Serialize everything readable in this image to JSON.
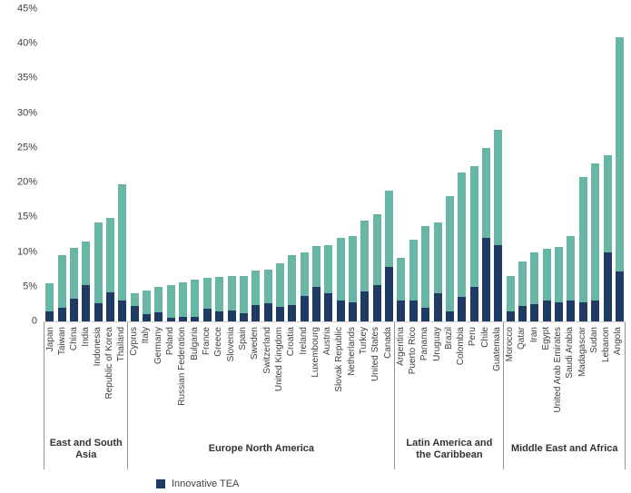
{
  "chart_data": {
    "type": "bar",
    "stacked": true,
    "title": "",
    "xlabel": "",
    "ylabel": "",
    "ylim": [
      0,
      45
    ],
    "grid": false,
    "legend_position": "bottom-left",
    "legend": "Innovative TEA",
    "ytick_values": [
      0,
      5,
      10,
      15,
      20,
      25,
      30,
      35,
      40,
      45
    ],
    "ytick_labels": [
      "0",
      "5%",
      "10%",
      "15%",
      "20%",
      "25%",
      "30%",
      "35%",
      "40%",
      "45%"
    ],
    "colors": {
      "innovative": "#1f3a63",
      "rest": "#68b7a6"
    },
    "groups": [
      {
        "label": "East and South Asia",
        "countries": [
          {
            "name": "Japan",
            "total": 5.5,
            "innovative": 1.5
          },
          {
            "name": "Taiwan",
            "total": 9.6,
            "innovative": 2.0
          },
          {
            "name": "China",
            "total": 10.6,
            "innovative": 3.3
          },
          {
            "name": "India",
            "total": 11.5,
            "innovative": 5.2
          },
          {
            "name": "Indonesia",
            "total": 14.2,
            "innovative": 2.6
          },
          {
            "name": "Republic of Korea",
            "total": 14.9,
            "innovative": 4.2
          },
          {
            "name": "Thailand",
            "total": 19.8,
            "innovative": 3.0
          }
        ]
      },
      {
        "label": "Europe North America",
        "countries": [
          {
            "name": "Cyprus",
            "total": 4.0,
            "innovative": 2.2
          },
          {
            "name": "Italy",
            "total": 4.5,
            "innovative": 1.0
          },
          {
            "name": "Germany",
            "total": 5.0,
            "innovative": 1.3
          },
          {
            "name": "Poland",
            "total": 5.3,
            "innovative": 0.5
          },
          {
            "name": "Russian Federation",
            "total": 5.6,
            "innovative": 0.7
          },
          {
            "name": "Bulgaria",
            "total": 6.0,
            "innovative": 0.7
          },
          {
            "name": "France",
            "total": 6.3,
            "innovative": 1.8
          },
          {
            "name": "Greece",
            "total": 6.4,
            "innovative": 1.5
          },
          {
            "name": "Slovenia",
            "total": 6.5,
            "innovative": 1.6
          },
          {
            "name": "Spain",
            "total": 6.6,
            "innovative": 1.2
          },
          {
            "name": "Sweden",
            "total": 7.3,
            "innovative": 2.4
          },
          {
            "name": "Switzerland",
            "total": 7.5,
            "innovative": 2.6
          },
          {
            "name": "United Kingdom",
            "total": 8.4,
            "innovative": 2.1
          },
          {
            "name": "Croatia",
            "total": 9.6,
            "innovative": 2.3
          },
          {
            "name": "Ireland",
            "total": 10.0,
            "innovative": 3.6
          },
          {
            "name": "Luxembourg",
            "total": 10.9,
            "innovative": 5.0
          },
          {
            "name": "Austria",
            "total": 11.0,
            "innovative": 4.0
          },
          {
            "name": "Slovak Republic",
            "total": 12.0,
            "innovative": 3.0
          },
          {
            "name": "Netherlands",
            "total": 12.3,
            "innovative": 2.8
          },
          {
            "name": "Turkey",
            "total": 14.5,
            "innovative": 4.3
          },
          {
            "name": "United States",
            "total": 15.5,
            "innovative": 5.3
          },
          {
            "name": "Canada",
            "total": 18.8,
            "innovative": 7.9
          }
        ]
      },
      {
        "label": "Latin America and the Caribbean",
        "countries": [
          {
            "name": "Argentina",
            "total": 9.1,
            "innovative": 3.0
          },
          {
            "name": "Puerto Rico",
            "total": 11.8,
            "innovative": 3.0
          },
          {
            "name": "Panama",
            "total": 13.8,
            "innovative": 2.0
          },
          {
            "name": "Uruguay",
            "total": 14.2,
            "innovative": 4.0
          },
          {
            "name": "Brazil",
            "total": 18.0,
            "innovative": 1.5
          },
          {
            "name": "Colombia",
            "total": 21.5,
            "innovative": 3.5
          },
          {
            "name": "Peru",
            "total": 22.4,
            "innovative": 5.0
          },
          {
            "name": "Chile",
            "total": 25.0,
            "innovative": 12.0
          },
          {
            "name": "Guatemala",
            "total": 27.6,
            "innovative": 11.0
          }
        ]
      },
      {
        "label": "Middle East and Africa",
        "countries": [
          {
            "name": "Morocco",
            "total": 6.6,
            "innovative": 1.5
          },
          {
            "name": "Qatar",
            "total": 8.7,
            "innovative": 2.2
          },
          {
            "name": "Iran",
            "total": 10.0,
            "innovative": 2.5
          },
          {
            "name": "Egypt",
            "total": 10.5,
            "innovative": 3.0
          },
          {
            "name": "United Arab Emirates",
            "total": 10.7,
            "innovative": 2.8
          },
          {
            "name": "Saudi Arabia",
            "total": 12.3,
            "innovative": 3.0
          },
          {
            "name": "Madagascar",
            "total": 20.8,
            "innovative": 2.8
          },
          {
            "name": "Sudan",
            "total": 22.7,
            "innovative": 3.0
          },
          {
            "name": "Lebanon",
            "total": 24.0,
            "innovative": 10.0
          },
          {
            "name": "Angola",
            "total": 41.0,
            "innovative": 7.2
          }
        ]
      }
    ]
  }
}
